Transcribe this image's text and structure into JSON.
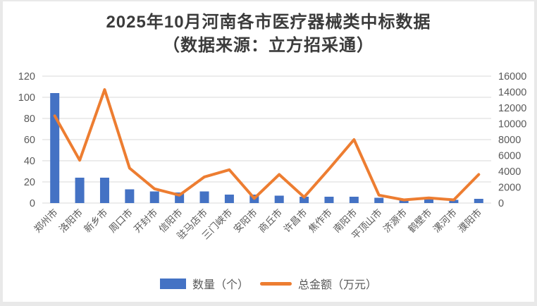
{
  "title": {
    "line1": "2025年10月河南各市医疗器械类中标数据",
    "line2": "（数据来源：立方招采通）"
  },
  "legend": [
    {
      "label": "数量（个）",
      "swatch": "bar-swatch-icon",
      "color": "#4472C4"
    },
    {
      "label": "总金额（万元）",
      "swatch": "line-swatch-icon",
      "color": "#ED7D31"
    }
  ],
  "chart_data": {
    "type": "bar+line combo",
    "title": "2025年10月河南各市医疗器械类中标数据（数据来源：立方招采通）",
    "categories": [
      "郑州市",
      "洛阳市",
      "新乡市",
      "周口市",
      "开封市",
      "信阳市",
      "驻马店市",
      "三门峡市",
      "安阳市",
      "商丘市",
      "许昌市",
      "焦作市",
      "南阳市",
      "平顶山市",
      "济源市",
      "鹤壁市",
      "漯河市",
      "濮阳市"
    ],
    "series": [
      {
        "name": "数量（个）",
        "type": "bar",
        "axis": "left",
        "color": "#4472C4",
        "values": [
          104,
          24,
          24,
          13,
          11,
          10,
          11,
          8,
          8,
          7,
          6,
          6,
          6,
          5,
          3,
          4,
          3,
          4
        ]
      },
      {
        "name": "总金额（万元）",
        "type": "line",
        "axis": "right",
        "color": "#ED7D31",
        "values": [
          11000,
          5400,
          14300,
          4400,
          1800,
          1000,
          3300,
          4200,
          600,
          3600,
          750,
          4300,
          8000,
          1000,
          400,
          650,
          400,
          3600
        ]
      }
    ],
    "left_axis": {
      "min": 0,
      "max": 120,
      "step": 20,
      "ticks": [
        0,
        20,
        40,
        60,
        80,
        100,
        120
      ]
    },
    "right_axis": {
      "min": 0,
      "max": 16000,
      "step": 2000,
      "ticks": [
        0,
        2000,
        4000,
        6000,
        8000,
        10000,
        12000,
        14000,
        16000
      ]
    },
    "grid": "horizontal",
    "legend_position": "bottom",
    "gridline_color": "#d9d9d9",
    "axis_label_color": "#595959"
  }
}
